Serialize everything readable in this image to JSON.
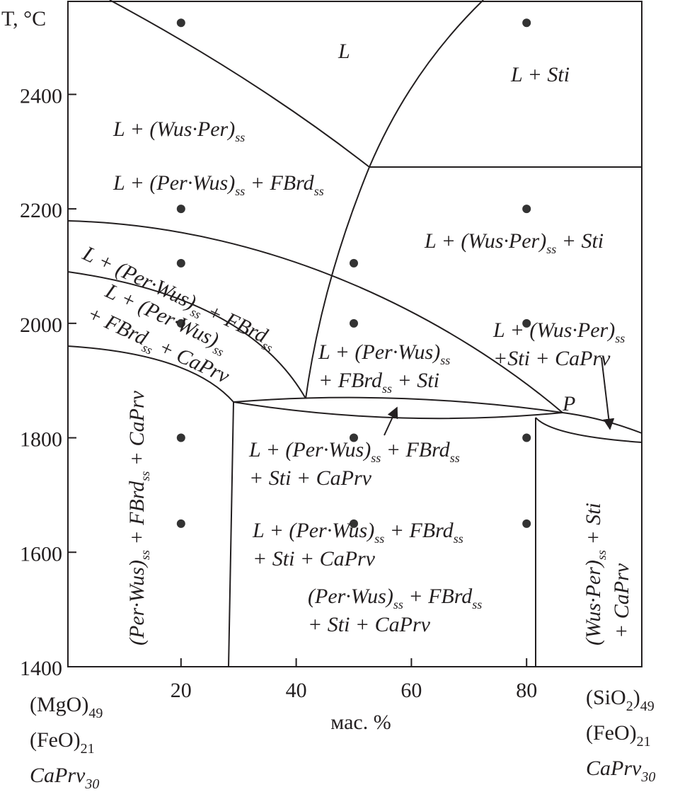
{
  "chart_data": {
    "type": "scatter",
    "y_label": "T, °C",
    "x_label": "мас. %",
    "xlim": [
      0,
      100
    ],
    "ylim": [
      1400,
      2560
    ],
    "xticks": [
      20,
      40,
      60,
      80
    ],
    "yticks": [
      1400,
      1600,
      1800,
      2000,
      2200,
      2400
    ],
    "color": "#333333",
    "x": [
      20,
      80,
      20,
      80,
      20,
      50,
      20,
      50,
      80,
      20,
      50,
      80,
      20,
      50,
      80
    ],
    "y": [
      2525,
      2525,
      2200,
      2200,
      2105,
      2105,
      2000,
      2000,
      2000,
      1800,
      1800,
      1800,
      1650,
      1650,
      1650
    ],
    "left_composition": [
      [
        "(MgO)",
        "49"
      ],
      [
        "(FeO)",
        "21"
      ],
      [
        "CaPrv",
        "30"
      ]
    ],
    "right_composition": [
      [
        "(SiO",
        "2",
        ")",
        "49"
      ],
      [
        "(FeO)",
        "21"
      ],
      [
        "CaPrv",
        "30"
      ]
    ],
    "annotations": [
      [
        [
          "L"
        ]
      ],
      [
        [
          "L + Sti"
        ]
      ],
      [
        [
          "L + (Wus·Per)",
          "ss"
        ]
      ],
      [
        [
          "L + (Per·Wus)",
          "ss",
          " + FBrd",
          "ss"
        ]
      ],
      [
        [
          "L + (Wus·Per)",
          "ss",
          " + Sti"
        ]
      ],
      [
        [
          "L + (Per·Wus)",
          "ss",
          " + FBrd",
          "ss"
        ]
      ],
      [
        [
          "L + (Per·Wus)",
          "ss"
        ],
        [
          "+ FBrd",
          "ss",
          " + CaPrv"
        ]
      ],
      [
        [
          "L + (Per·Wus)",
          "ss"
        ],
        [
          "+ FBrd",
          "ss",
          " + Sti"
        ]
      ],
      [
        [
          "L + (Wus·Per)",
          "ss"
        ],
        [
          "+Sti + CaPrv"
        ]
      ],
      [
        [
          "P"
        ]
      ],
      [
        [
          "L + (Per·Wus)",
          "ss",
          " + FBrd",
          "ss"
        ],
        [
          "+ Sti + CaPrv"
        ]
      ],
      [
        [
          "L + (Per·Wus)",
          "ss",
          " + FBrd",
          "ss"
        ],
        [
          "+ Sti + CaPrv"
        ]
      ],
      [
        [
          "(Per·Wus)",
          "ss",
          " + FBrd",
          "ss"
        ],
        [
          "+ Sti + CaPrv"
        ]
      ],
      [
        [
          "(Per·Wus)",
          "ss",
          " + FBrd",
          "ss",
          " + CaPrv"
        ]
      ],
      [
        [
          "(Wus·Per)",
          "ss",
          " + Sti"
        ],
        [
          "+ CaPrv"
        ]
      ]
    ]
  }
}
